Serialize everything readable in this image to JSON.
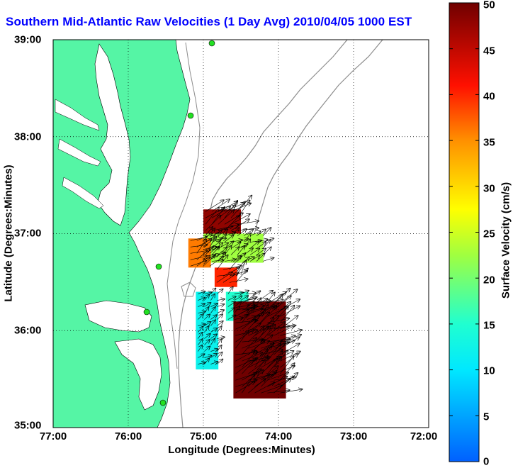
{
  "title": "Southern Mid-Atlantic Raw Velocities (1 Day Avg) 2010/04/05 1000 EST",
  "chart_data": {
    "type": "heatmap",
    "title": "Southern Mid-Atlantic Raw Velocities (1 Day Avg) 2010/04/05 1000 EST",
    "xlabel": "Longitude (Degrees:Minutes)",
    "ylabel": "Latitude (Degrees:Minutes)",
    "x_ticks": [
      "77:00",
      "76:00",
      "75:00",
      "74:00",
      "73:00",
      "72:00"
    ],
    "y_ticks": [
      "39:00",
      "38:00",
      "37:00",
      "36:00",
      "35:00"
    ],
    "xlim": [
      -77,
      -72
    ],
    "ylim": [
      35,
      39
    ],
    "grid": true,
    "colorbar": {
      "label": "Surface Velocity (cm/s)",
      "ticks": [
        "0",
        "5",
        "10",
        "15",
        "20",
        "25",
        "30",
        "35",
        "40",
        "45",
        "50"
      ],
      "range": [
        0,
        50
      ]
    },
    "velocity_regions": [
      {
        "lon": [
          -75.0,
          -74.5
        ],
        "lat": [
          37.0,
          37.25
        ],
        "speed": 48
      },
      {
        "lon": [
          -75.0,
          -74.2
        ],
        "lat": [
          36.7,
          37.0
        ],
        "speed": 22
      },
      {
        "lon": [
          -75.2,
          -74.9
        ],
        "lat": [
          36.65,
          36.95
        ],
        "speed": 36
      },
      {
        "lon": [
          -74.85,
          -74.55
        ],
        "lat": [
          36.45,
          36.65
        ],
        "speed": 40
      },
      {
        "lon": [
          -75.1,
          -74.8
        ],
        "lat": [
          35.6,
          36.4
        ],
        "speed": 12
      },
      {
        "lon": [
          -74.7,
          -74.4
        ],
        "lat": [
          36.1,
          36.4
        ],
        "speed": 15
      },
      {
        "lon": [
          -74.6,
          -73.9
        ],
        "lat": [
          35.3,
          36.3
        ],
        "speed": 50
      }
    ],
    "land_color": "#55f5a5",
    "shelf_contour_color": "#8c8c8c",
    "station_color": "#22e022"
  }
}
